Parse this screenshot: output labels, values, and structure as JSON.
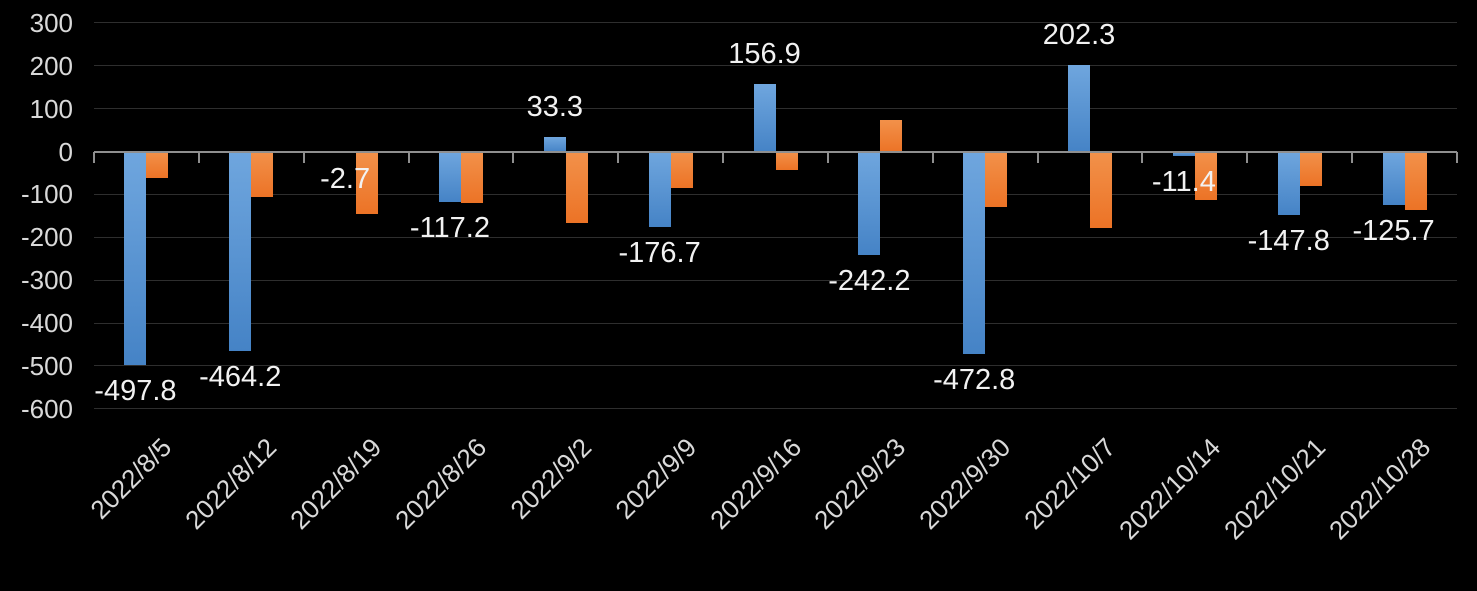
{
  "chart_data": {
    "type": "bar",
    "title": "",
    "xlabel": "",
    "ylabel": "",
    "categories": [
      "2022/8/5",
      "2022/8/12",
      "2022/8/19",
      "2022/8/26",
      "2022/9/2",
      "2022/9/9",
      "2022/9/16",
      "2022/9/23",
      "2022/9/30",
      "2022/10/7",
      "2022/10/14",
      "2022/10/21",
      "2022/10/28"
    ],
    "series": [
      {
        "name": "series-1-blue",
        "color": "#5B9BD5",
        "values": [
          -497.8,
          -464.2,
          -2.7,
          -117.2,
          33.3,
          -176.7,
          156.9,
          -242.2,
          -472.8,
          202.3,
          -11.4,
          -147.8,
          -125.7
        ],
        "data_labels": [
          "-497.8",
          "-464.2",
          "-2.7",
          "-117.2",
          "33.3",
          "-176.7",
          "156.9",
          "-242.2",
          "-472.8",
          "202.3",
          "-11.4",
          "-147.8",
          "-125.7"
        ]
      },
      {
        "name": "series-2-orange",
        "color": "#ED7D31",
        "values": [
          -61,
          -107,
          -146,
          -119,
          -167,
          -84,
          -42,
          73,
          -130,
          -179,
          -112,
          -80,
          -136
        ],
        "data_labels": null
      }
    ],
    "ylim": [
      -600,
      300
    ],
    "ytick_step": 100,
    "yticks": [
      "300",
      "200",
      "100",
      "0",
      "-100",
      "-200",
      "-300",
      "-400",
      "-500",
      "-600"
    ],
    "grid": true,
    "legend_position": "none",
    "x_label_rotation_deg": -45
  },
  "style": {
    "background": "#000000",
    "axis_text_color": "#D9D9D9",
    "data_label_color": "#F2F2F2",
    "gridline_color": "#2E2E2E",
    "axis_line_color": "#8F8F8F",
    "series1_gradient_top": "#6FA6DE",
    "series1_gradient_bottom": "#4583C6",
    "series2_gradient_top": "#F2914A",
    "series2_gradient_bottom": "#EC7326"
  }
}
